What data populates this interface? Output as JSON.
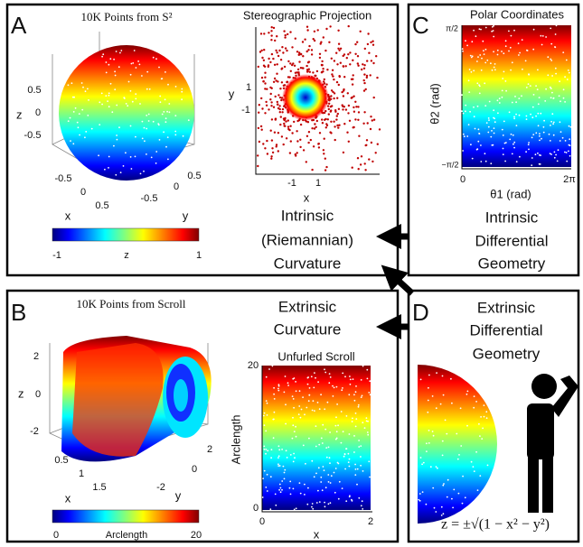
{
  "panel_a": {
    "label": "A",
    "sphere_title": "10K Points from S²",
    "z_label": "z",
    "z_ticks": [
      "0.5",
      "0",
      "-0.5"
    ],
    "x_label": "x",
    "x_ticks": [
      "-0.5",
      "0",
      "0.5"
    ],
    "y_label": "y",
    "y_ticks": [
      "-0.5",
      "0",
      "0.5"
    ],
    "colorbar": {
      "min": "-1",
      "label": "z",
      "max": "1"
    },
    "projection": {
      "title": "Stereographic Projection",
      "y_label": "y",
      "y_ticks": [
        "1",
        "-1"
      ],
      "x_label": "x",
      "x_ticks": [
        "-1",
        "1"
      ]
    },
    "caption": [
      "Intrinsic",
      "(Riemannian)",
      "Curvature"
    ]
  },
  "panel_b": {
    "label": "B",
    "scroll_title": "10K Points from Scroll",
    "z_label": "z",
    "z_ticks": [
      "2",
      "0",
      "-2"
    ],
    "x_label": "x",
    "x_ticks": [
      "0.5",
      "1",
      "1.5"
    ],
    "y_label": "y",
    "y_ticks": [
      "2",
      "0",
      "-2"
    ],
    "colorbar": {
      "min": "0",
      "label": "Arclength",
      "max": "20"
    },
    "caption": [
      "Extrinsic",
      "Curvature"
    ],
    "unfurled": {
      "title": "Unfurled Scroll",
      "y_label": "Arclength",
      "y_ticks": [
        "20",
        "0"
      ],
      "x_label": "x",
      "x_ticks": [
        "0",
        "2"
      ]
    }
  },
  "panel_c": {
    "label": "C",
    "title": "Polar Coordinates",
    "y_label": "θ2 (rad)",
    "y_ticks": [
      "π/2",
      "−π/2"
    ],
    "x_label": "θ1 (rad)",
    "x_ticks": [
      "0",
      "2π"
    ],
    "caption": [
      "Intrinsic",
      "Differential",
      "Geometry"
    ]
  },
  "panel_d": {
    "label": "D",
    "caption": [
      "Extrinsic",
      "Differential",
      "Geometry"
    ],
    "formula": "z = ±√(1 − x² − y²)"
  }
}
